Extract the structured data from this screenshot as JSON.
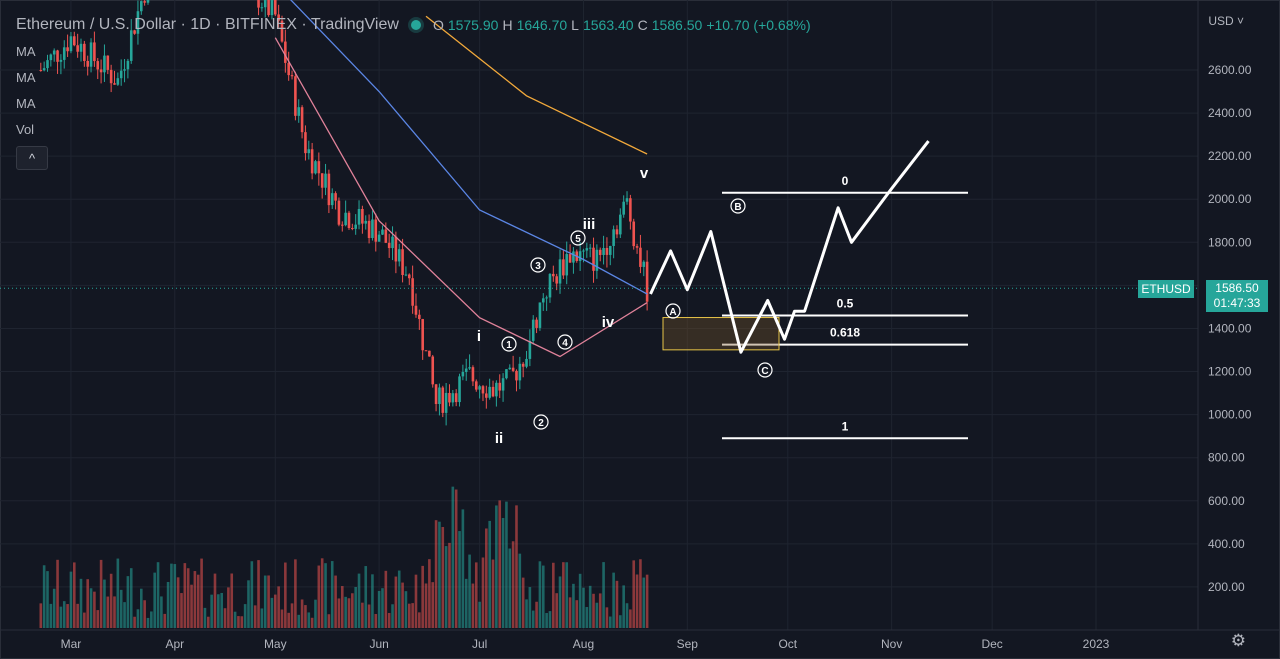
{
  "header": {
    "symbol_title": "Ethereum / U.S. Dollar · 1D · BITFINEX · TradingView",
    "ohlc": {
      "o_label": "O",
      "o": "1575.90",
      "h_label": "H",
      "h": "1646.70",
      "l_label": "L",
      "l": "1563.40",
      "c_label": "C",
      "c": "1586.50",
      "change": "+10.70 (+0.68%)"
    }
  },
  "indicators": [
    "MA",
    "MA",
    "MA",
    "Vol"
  ],
  "collapse_label": "^",
  "axis": {
    "currency": "USD ˅",
    "price_ticks": [
      "2600.00",
      "2400.00",
      "2200.00",
      "2000.00",
      "1800.00",
      "1600.00",
      "1400.00",
      "1200.00",
      "1000.00",
      "800.00",
      "600.00",
      "400.00",
      "200.00"
    ],
    "time_ticks": [
      "Mar",
      "Apr",
      "May",
      "Jun",
      "Jul",
      "Aug",
      "Sep",
      "Oct",
      "Nov",
      "Dec",
      "2023"
    ]
  },
  "last_price": {
    "symbol": "ETHUSD",
    "price": "1586.50",
    "countdown": "01:47:33"
  },
  "annotations": {
    "wave_i": "i",
    "wave_ii": "ii",
    "wave_iii": "iii",
    "wave_iv": "iv",
    "wave_v": "v",
    "sub_1": "1",
    "sub_2": "2",
    "sub_3": "3",
    "sub_4": "4",
    "sub_5": "5",
    "corr_a": "A",
    "corr_b": "B",
    "corr_c": "C",
    "fib_0": "0",
    "fib_05": "0.5",
    "fib_0618": "0.618",
    "fib_1": "1"
  },
  "colors": {
    "up": "#26a69a",
    "down": "#ef5350",
    "bg": "#131722",
    "grid": "#1f2430",
    "ma_fast": "#e0829a",
    "ma_mid": "#5b86e5",
    "ma_slow": "#f2a93b",
    "drawing": "#ffffff"
  },
  "chart_data": {
    "type": "candlestick",
    "price_range": [
      0,
      2800
    ],
    "price_scale_note": "USD",
    "series": [
      {
        "name": "ETHUSD daily close (approx.)",
        "x": [
          "2022-02-20",
          "2022-03-01",
          "2022-03-15",
          "2022-04-01",
          "2022-04-10",
          "2022-04-20",
          "2022-05-01",
          "2022-05-10",
          "2022-05-20",
          "2022-06-01",
          "2022-06-10",
          "2022-06-18",
          "2022-06-28",
          "2022-07-05",
          "2022-07-10",
          "2022-07-15",
          "2022-07-20",
          "2022-07-28",
          "2022-08-05",
          "2022-08-14",
          "2022-08-20"
        ],
        "values": [
          2600,
          2750,
          2550,
          3450,
          3150,
          3050,
          2850,
          2250,
          1950,
          1850,
          1650,
          1050,
          1180,
          1120,
          1150,
          1300,
          1560,
          1750,
          1720,
          1980,
          1586
        ]
      }
    ],
    "moving_averages": [
      {
        "color": "#e0829a",
        "x": [
          "2022-05-01",
          "2022-06-01",
          "2022-07-01",
          "2022-07-25",
          "2022-08-20"
        ],
        "values": [
          2750,
          1900,
          1450,
          1270,
          1520
        ]
      },
      {
        "color": "#5b86e5",
        "x": [
          "2022-05-01",
          "2022-06-01",
          "2022-07-01",
          "2022-08-01",
          "2022-08-20"
        ],
        "values": [
          3000,
          2500,
          1950,
          1720,
          1560
        ]
      },
      {
        "color": "#f2a93b",
        "x": [
          "2022-06-15",
          "2022-07-15",
          "2022-08-20"
        ],
        "values": [
          2850,
          2480,
          2210
        ]
      }
    ],
    "fib_levels": [
      {
        "label": "0",
        "value": 2030
      },
      {
        "label": "0.5",
        "value": 1460
      },
      {
        "label": "0.618",
        "value": 1325
      },
      {
        "label": "1",
        "value": 890
      }
    ],
    "projection_path": {
      "x": [
        "2022-08-21",
        "2022-08-27",
        "2022-09-01",
        "2022-09-08",
        "2022-09-17",
        "2022-09-25",
        "2022-09-30",
        "2022-10-03",
        "2022-10-06",
        "2022-10-16",
        "2022-10-20",
        "2022-11-01",
        "2022-11-12"
      ],
      "values": [
        1560,
        1760,
        1580,
        1850,
        1290,
        1530,
        1350,
        1480,
        1480,
        1960,
        1800,
        2050,
        2270
      ]
    }
  }
}
